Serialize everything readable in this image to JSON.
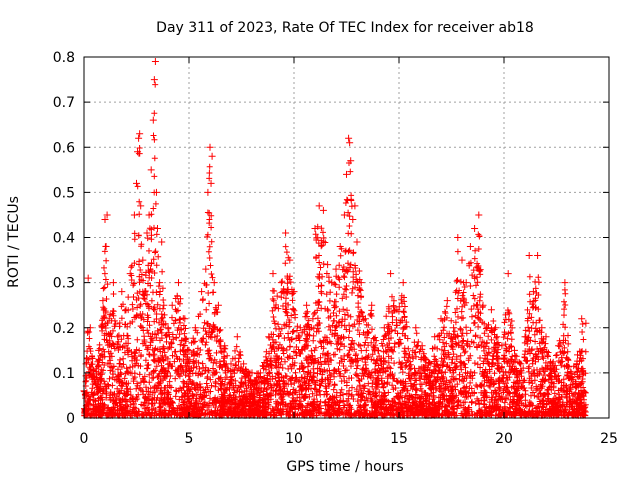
{
  "colors": {
    "series": "#ff0000",
    "axis": "#000000",
    "grid": "#a0a0a0"
  },
  "chart_data": {
    "type": "scatter",
    "title": "Day 311 of 2023, Rate Of TEC Index for receiver ab18",
    "xlabel": "GPS time / hours",
    "ylabel": "ROTI / TECUs",
    "xlim": [
      0,
      25
    ],
    "ylim": [
      0,
      0.8
    ],
    "xticks": [
      0,
      5,
      10,
      15,
      20,
      25
    ],
    "xtick_labels": [
      "0",
      "5",
      "10",
      "15",
      "20",
      "25"
    ],
    "yticks": [
      0,
      0.1,
      0.2,
      0.3,
      0.4,
      0.5,
      0.6,
      0.7,
      0.8
    ],
    "ytick_labels": [
      "0",
      "0.1",
      "0.2",
      "0.3",
      "0.4",
      "0.5",
      "0.6",
      "0.7",
      "0.8"
    ],
    "grid": true,
    "marker": "+",
    "series": [
      {
        "name": "ROTI",
        "x": [
          0.0,
          0.1,
          0.2,
          0.3,
          0.5,
          0.7,
          0.9,
          1.0,
          1.05,
          1.1,
          1.2,
          1.4,
          1.6,
          1.8,
          2.0,
          2.2,
          2.4,
          2.5,
          2.55,
          2.6,
          2.65,
          2.7,
          2.8,
          2.9,
          3.0,
          3.1,
          3.2,
          3.3,
          3.35,
          3.4,
          3.45,
          3.5,
          3.6,
          3.7,
          3.8,
          4.0,
          4.2,
          4.5,
          4.8,
          5.0,
          5.3,
          5.6,
          5.8,
          5.9,
          6.0,
          6.05,
          6.1,
          6.2,
          6.4,
          6.7,
          7.0,
          7.3,
          7.6,
          8.0,
          8.4,
          8.8,
          9.0,
          9.2,
          9.4,
          9.6,
          9.8,
          10.0,
          10.3,
          10.6,
          10.9,
          11.0,
          11.2,
          11.4,
          11.6,
          11.8,
          12.0,
          12.2,
          12.4,
          12.5,
          12.6,
          12.65,
          12.7,
          12.8,
          12.9,
          13.0,
          13.2,
          13.4,
          13.7,
          14.0,
          14.3,
          14.6,
          14.9,
          15.2,
          15.5,
          15.8,
          16.1,
          16.4,
          16.7,
          17.0,
          17.3,
          17.6,
          17.8,
          18.0,
          18.2,
          18.4,
          18.6,
          18.8,
          19.0,
          19.2,
          19.4,
          19.6,
          19.9,
          20.2,
          20.5,
          20.8,
          21.0,
          21.2,
          21.4,
          21.6,
          21.8,
          22.0,
          22.3,
          22.6,
          22.9,
          23.2,
          23.5,
          23.7,
          23.9
        ],
        "y": [
          0.06,
          0.12,
          0.31,
          0.2,
          0.08,
          0.15,
          0.26,
          0.44,
          0.38,
          0.45,
          0.22,
          0.3,
          0.18,
          0.28,
          0.24,
          0.32,
          0.45,
          0.52,
          0.59,
          0.62,
          0.63,
          0.47,
          0.35,
          0.28,
          0.41,
          0.45,
          0.55,
          0.66,
          0.75,
          0.79,
          0.5,
          0.42,
          0.3,
          0.39,
          0.25,
          0.2,
          0.25,
          0.3,
          0.22,
          0.15,
          0.2,
          0.28,
          0.33,
          0.5,
          0.6,
          0.52,
          0.58,
          0.3,
          0.25,
          0.16,
          0.12,
          0.18,
          0.12,
          0.1,
          0.1,
          0.18,
          0.32,
          0.27,
          0.3,
          0.41,
          0.35,
          0.28,
          0.2,
          0.25,
          0.22,
          0.42,
          0.47,
          0.46,
          0.34,
          0.3,
          0.33,
          0.38,
          0.45,
          0.54,
          0.62,
          0.61,
          0.57,
          0.44,
          0.47,
          0.39,
          0.3,
          0.22,
          0.25,
          0.15,
          0.2,
          0.32,
          0.24,
          0.3,
          0.14,
          0.2,
          0.16,
          0.12,
          0.18,
          0.22,
          0.26,
          0.2,
          0.4,
          0.35,
          0.3,
          0.38,
          0.42,
          0.45,
          0.25,
          0.2,
          0.24,
          0.2,
          0.16,
          0.32,
          0.15,
          0.12,
          0.18,
          0.36,
          0.28,
          0.36,
          0.2,
          0.18,
          0.12,
          0.16,
          0.3,
          0.1,
          0.14,
          0.22,
          0.21
        ]
      }
    ]
  }
}
